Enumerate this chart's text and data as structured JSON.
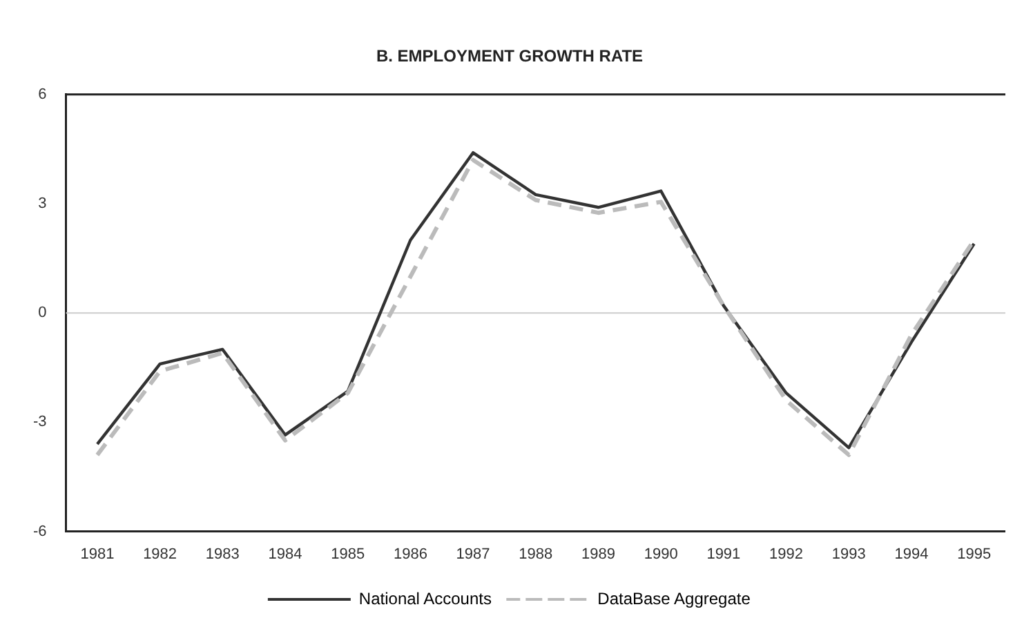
{
  "chart_data": {
    "type": "line",
    "title": "B. EMPLOYMENT GROWTH RATE",
    "categories": [
      "1981",
      "1982",
      "1983",
      "1984",
      "1985",
      "1986",
      "1987",
      "1988",
      "1989",
      "1990",
      "1991",
      "1992",
      "1993",
      "1994",
      "1995"
    ],
    "series": [
      {
        "name": "National Accounts",
        "color": "#333333",
        "line_style": "solid",
        "values": [
          -3.6,
          -1.4,
          -1.0,
          -3.35,
          -2.15,
          2.0,
          4.4,
          3.25,
          2.9,
          3.35,
          0.2,
          -2.2,
          -3.7,
          -0.8,
          1.9
        ]
      },
      {
        "name": "DataBase Aggregate",
        "color": "#bbbbbb",
        "line_style": "dashed",
        "values": [
          -3.9,
          -1.6,
          -1.1,
          -3.5,
          -2.2,
          1.0,
          4.2,
          3.1,
          2.75,
          3.05,
          0.2,
          -2.4,
          -3.9,
          -0.6,
          2.0
        ]
      }
    ],
    "ylim": [
      -6,
      6
    ],
    "yticks": [
      6,
      3,
      0,
      -3,
      -6
    ],
    "grid": false,
    "legend": "bottom",
    "marker": "none",
    "ref_lines": [
      {
        "axis": "y",
        "value": 0,
        "color": "#cccccc"
      }
    ]
  }
}
